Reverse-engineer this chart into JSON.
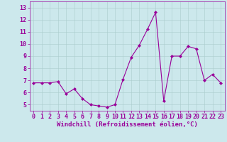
{
  "x": [
    0,
    1,
    2,
    3,
    4,
    5,
    6,
    7,
    8,
    9,
    10,
    11,
    12,
    13,
    14,
    15,
    16,
    17,
    18,
    19,
    20,
    21,
    22,
    23
  ],
  "y": [
    6.8,
    6.8,
    6.8,
    6.9,
    5.9,
    6.3,
    5.5,
    5.0,
    4.9,
    4.8,
    5.0,
    7.1,
    8.9,
    9.9,
    11.2,
    12.6,
    5.3,
    9.0,
    9.0,
    9.8,
    9.6,
    7.0,
    7.5,
    6.8
  ],
  "line_color": "#990099",
  "marker": "D",
  "marker_size": 2,
  "bg_color": "#cce8ec",
  "grid_color": "#aacccc",
  "xlabel": "Windchill (Refroidissement éolien,°C)",
  "xlabel_fontsize": 6.5,
  "yticks": [
    5,
    6,
    7,
    8,
    9,
    10,
    11,
    12,
    13
  ],
  "xticks": [
    0,
    1,
    2,
    3,
    4,
    5,
    6,
    7,
    8,
    9,
    10,
    11,
    12,
    13,
    14,
    15,
    16,
    17,
    18,
    19,
    20,
    21,
    22,
    23
  ],
  "xlim": [
    -0.5,
    23.5
  ],
  "ylim": [
    4.5,
    13.5
  ],
  "tick_fontsize": 6.0,
  "text_color": "#990099"
}
